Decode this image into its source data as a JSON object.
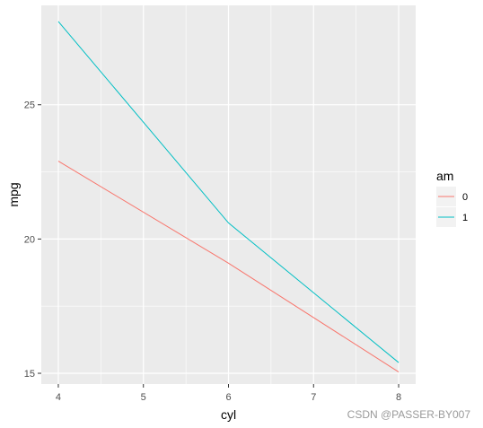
{
  "chart_data": {
    "type": "line",
    "xlabel": "cyl",
    "ylabel": "mpg",
    "x": [
      4,
      6,
      8
    ],
    "xlim": [
      3.8,
      8.2
    ],
    "ylim": [
      14.6,
      28.7
    ],
    "x_ticks": [
      "4",
      "5",
      "6",
      "7",
      "8"
    ],
    "y_ticks": [
      "15",
      "20",
      "25"
    ],
    "grid": true,
    "legend": {
      "title": "am",
      "placement": "right"
    },
    "series": [
      {
        "name": "0",
        "values": [
          22.9,
          19.1,
          15.05
        ],
        "color": "#F8766D"
      },
      {
        "name": "1",
        "values": [
          28.1,
          20.6,
          15.4
        ],
        "color": "#00BFC4"
      }
    ]
  },
  "watermark": "CSDN @PASSER-BY007"
}
